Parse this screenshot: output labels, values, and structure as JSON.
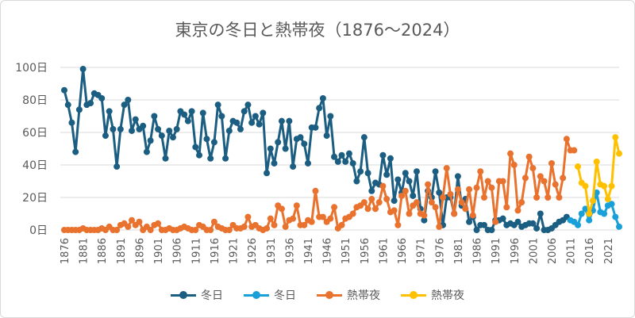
{
  "chart_data": {
    "type": "line",
    "title": "東京の冬日と熱帯夜（1876～2024）",
    "ylim": [
      0,
      100
    ],
    "y_ticks": [
      "0日",
      "20日",
      "40日",
      "60日",
      "80日",
      "100日"
    ],
    "y_tick_values": [
      0,
      20,
      40,
      60,
      80,
      100
    ],
    "x_tick_years": [
      1876,
      1881,
      1886,
      1891,
      1896,
      1901,
      1906,
      1911,
      1916,
      1921,
      1926,
      1931,
      1936,
      1941,
      1946,
      1951,
      1956,
      1961,
      1966,
      1971,
      1976,
      1981,
      1986,
      1991,
      1996,
      2001,
      2006,
      2011,
      2016,
      2021
    ],
    "xlim": [
      1876,
      2024
    ],
    "grid": true,
    "legend_position": "bottom",
    "series": [
      {
        "name": "冬日",
        "color": "#1b5e82",
        "start_year": 1876,
        "values": [
          86,
          77,
          66,
          48,
          74,
          99,
          77,
          78,
          84,
          83,
          81,
          58,
          73,
          62,
          39,
          62,
          77,
          80,
          61,
          68,
          62,
          64,
          48,
          55,
          70,
          62,
          58,
          44,
          61,
          57,
          62,
          73,
          71,
          67,
          73,
          51,
          46,
          72,
          56,
          44,
          54,
          77,
          70,
          44,
          61,
          67,
          66,
          62,
          73,
          77,
          66,
          70,
          65,
          72,
          35,
          50,
          41,
          54,
          67,
          50,
          67,
          39,
          56,
          57,
          53,
          41,
          63,
          63,
          75,
          81,
          58,
          70,
          45,
          42,
          46,
          42,
          47,
          41,
          30,
          36,
          57,
          35,
          24,
          29,
          28,
          46,
          34,
          44,
          18,
          31,
          23,
          35,
          30,
          21,
          36,
          13,
          6,
          24,
          20,
          36,
          23,
          3,
          20,
          20,
          10,
          33,
          15,
          19,
          5,
          8,
          0,
          3,
          3,
          0,
          0,
          6,
          6,
          7,
          3,
          4,
          3,
          5,
          2,
          3,
          4,
          4,
          1,
          10,
          0,
          0,
          1,
          3,
          5,
          6,
          8
        ]
      },
      {
        "name": "冬日",
        "color": "#1aa0d8",
        "start_year": 2011,
        "values": [
          6,
          5,
          3,
          10,
          13,
          6,
          12,
          23,
          11,
          10,
          15,
          16,
          8,
          2
        ]
      },
      {
        "name": "熱帯夜",
        "color": "#e8722e",
        "start_year": 1876,
        "values": [
          0,
          0,
          0,
          0,
          0,
          1,
          0,
          0,
          0,
          0,
          1,
          0,
          2,
          0,
          0,
          3,
          4,
          2,
          6,
          3,
          5,
          0,
          2,
          0,
          3,
          4,
          0,
          0,
          1,
          0,
          0,
          1,
          2,
          1,
          0,
          0,
          3,
          2,
          0,
          0,
          5,
          2,
          1,
          0,
          0,
          3,
          1,
          1,
          2,
          8,
          2,
          3,
          1,
          0,
          1,
          7,
          3,
          15,
          13,
          2,
          6,
          7,
          15,
          3,
          3,
          6,
          5,
          24,
          8,
          8,
          5,
          7,
          14,
          1,
          3,
          7,
          8,
          10,
          14,
          15,
          17,
          13,
          19,
          13,
          17,
          27,
          19,
          11,
          12,
          3,
          21,
          24,
          10,
          15,
          17,
          10,
          9,
          28,
          17,
          14,
          2,
          20,
          38,
          22,
          10,
          25,
          17,
          13,
          25,
          9,
          26,
          36,
          20,
          30,
          26,
          5,
          30,
          30,
          14,
          47,
          40,
          12,
          17,
          32,
          45,
          38,
          20,
          33,
          30,
          20,
          41,
          28,
          20,
          32,
          56,
          49,
          49
        ]
      },
      {
        "name": "熱帯夜",
        "color": "#ffc000",
        "start_year": 2013,
        "values": [
          39,
          29,
          27,
          10,
          18,
          42,
          28,
          27,
          19,
          27,
          57,
          47
        ]
      }
    ]
  }
}
